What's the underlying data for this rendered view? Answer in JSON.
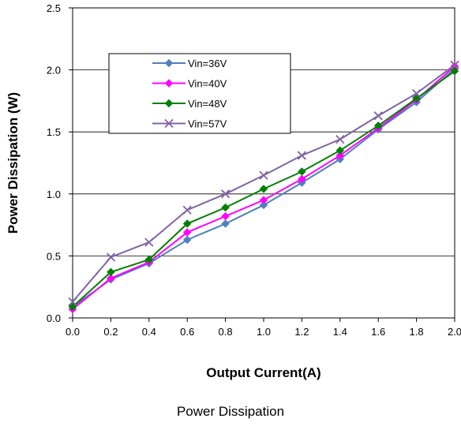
{
  "chart_data": {
    "type": "line",
    "title": "",
    "xlabel": "Output  Current(A)",
    "ylabel": "Power Dissipation (W)",
    "xlim": [
      0.0,
      2.0
    ],
    "ylim": [
      0.0,
      2.5
    ],
    "x_ticks": [
      "0.0",
      "0.2",
      "0.4",
      "0.6",
      "0.8",
      "1.0",
      "1.2",
      "1.4",
      "1.6",
      "1.8",
      "2.0"
    ],
    "y_ticks": [
      "0.0",
      "0.5",
      "1.0",
      "1.5",
      "2.0",
      "2.5"
    ],
    "grid": "horizontal",
    "legend_position": "top-left-inside",
    "x": [
      0.0,
      0.2,
      0.4,
      0.6,
      0.8,
      1.0,
      1.2,
      1.4,
      1.6,
      1.8,
      2.0
    ],
    "series": [
      {
        "name": "Vin=36V",
        "color": "#4F81BD",
        "marker": "diamond",
        "values": [
          0.09,
          0.31,
          0.44,
          0.63,
          0.76,
          0.91,
          1.09,
          1.28,
          1.52,
          1.74,
          2.01
        ]
      },
      {
        "name": "Vin=40V",
        "color": "#FF00FF",
        "marker": "diamond",
        "values": [
          0.07,
          0.32,
          0.45,
          0.69,
          0.82,
          0.95,
          1.12,
          1.31,
          1.53,
          1.76,
          2.03
        ]
      },
      {
        "name": "Vin=48V",
        "color": "#008000",
        "marker": "diamond",
        "values": [
          0.09,
          0.37,
          0.47,
          0.76,
          0.89,
          1.04,
          1.18,
          1.35,
          1.55,
          1.77,
          1.99
        ]
      },
      {
        "name": "Vin=57V",
        "color": "#8064A2",
        "marker": "x",
        "values": [
          0.13,
          0.49,
          0.61,
          0.87,
          1.0,
          1.15,
          1.31,
          1.44,
          1.63,
          1.81,
          2.04
        ]
      }
    ]
  },
  "caption": "Power Dissipation"
}
